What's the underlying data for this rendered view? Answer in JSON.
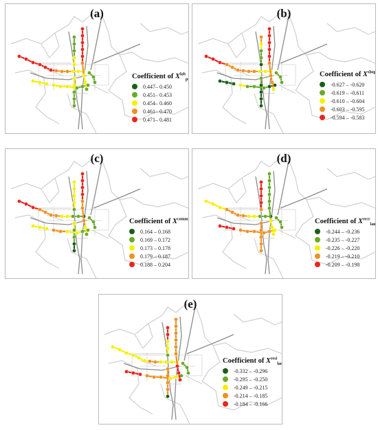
{
  "legend_title_prefix": "Coefficient of",
  "variable_letter": "X",
  "class_colors": [
    "#1a5e1a",
    "#6aaa2a",
    "#f5f000",
    "#ee9220",
    "#e8261f"
  ],
  "colors": {
    "boundary": "#cfcfcf",
    "road_grid": "#dedede",
    "base_line": "#8a8a8a",
    "connector": "#c3c3c3",
    "panel_border": "#b9b9b9"
  },
  "panels": [
    {
      "id": "a",
      "label": "(a)",
      "var_sup": "lab",
      "var_sub": "pst",
      "legend": [
        "0.447– 0.450",
        "0.451– 0.453",
        "0.454– 0.460",
        "0.461– 0.470",
        "0.471– 0.481"
      ]
    },
    {
      "id": "b",
      "label": "(b)",
      "var_sup": "shop",
      "var_sub": "poi",
      "legend": [
        "-0.627 – -0.620",
        "-0.619 – -0.611",
        "-0.610 – -0.604",
        "-0.603 – -0.595",
        "-0.594 – -0.583"
      ]
    },
    {
      "id": "c",
      "label": "(c)",
      "var_sup": "comm",
      "var_sub": "land",
      "legend": [
        "0.164 – 0.168",
        "0.169 – 0.172",
        "0.173 – 0.178",
        "0.179 – 0.187",
        "0.188 – 0.204"
      ]
    },
    {
      "id": "d",
      "label": "(d)",
      "var_sup": "recr",
      "var_sub": "land",
      "legend": [
        "-0.244 – -0.236",
        "-0.235 – -0.227",
        "-0.226 – -0.220",
        "-0.219 – -0.210",
        "-0.209 – -0.198"
      ]
    },
    {
      "id": "e",
      "label": "(e)",
      "var_sup": "resi",
      "var_sub": "land",
      "legend": [
        "-0.332 – -0.296",
        "-0.295 – -0.250",
        "-0.249 – -0.215",
        "-0.214 – -0.185",
        "-0.184 – -0.166"
      ]
    }
  ],
  "station_classes": {
    "a": {
      "line1_w": [
        4,
        4,
        4,
        4,
        4,
        4,
        3,
        3,
        3,
        2,
        2,
        2
      ],
      "line1_e": [
        1,
        1,
        1
      ],
      "line2_n": [
        1,
        1,
        1,
        2,
        2
      ],
      "line2_s": [
        2,
        2,
        1,
        1,
        1
      ],
      "line3_nw": [
        2,
        2,
        2
      ],
      "line3_se": [
        2,
        2,
        2,
        1,
        1,
        1
      ],
      "line4": [
        4,
        4,
        4,
        4,
        4,
        3,
        2,
        2,
        1
      ]
    },
    "b": {
      "line1_w": [
        4,
        4,
        4,
        3,
        3,
        3,
        3,
        3,
        3,
        2,
        2,
        2
      ],
      "line1_e": [
        1,
        1,
        1
      ],
      "line2_n": [
        3,
        2,
        1,
        1,
        0
      ],
      "line2_s": [
        1,
        0,
        0,
        0,
        0
      ],
      "line3_nw": [
        0,
        0,
        0
      ],
      "line3_se": [
        2,
        1,
        1,
        1,
        0,
        0
      ],
      "line4": [
        4,
        4,
        4,
        4,
        4,
        3,
        3,
        3,
        2
      ]
    },
    "c": {
      "line1_w": [
        4,
        4,
        4,
        3,
        3,
        3,
        3,
        2,
        2,
        1,
        1,
        0
      ],
      "line1_e": [
        1,
        1,
        1
      ],
      "line2_n": [
        2,
        2,
        2,
        2,
        1
      ],
      "line2_s": [
        2,
        1,
        1,
        0,
        0
      ],
      "line3_nw": [
        2,
        2,
        2
      ],
      "line3_se": [
        3,
        3,
        2,
        2,
        1,
        1
      ],
      "line4": [
        4,
        4,
        4,
        4,
        3,
        3,
        3,
        2,
        1
      ]
    },
    "d": {
      "line1_w": [
        2,
        2,
        2,
        3,
        3,
        3,
        3,
        2,
        2,
        1,
        1,
        0
      ],
      "line1_e": [
        1,
        1,
        1
      ],
      "line2_n": [
        4,
        4,
        4,
        4,
        3
      ],
      "line2_s": [
        3,
        3,
        3,
        3,
        3
      ],
      "line3_nw": [
        4,
        4,
        4
      ],
      "line3_se": [
        3,
        3,
        3,
        3,
        3,
        2
      ],
      "line4": [
        1,
        1,
        1,
        1,
        1,
        1,
        2,
        2,
        2
      ]
    },
    "e": {
      "line1_w": [
        2,
        2,
        2,
        2,
        2,
        2,
        3,
        3,
        2,
        2,
        2,
        2
      ],
      "line1_e": [
        1,
        1,
        1
      ],
      "line2_n": [
        4,
        4,
        2,
        2,
        1
      ],
      "line2_s": [
        3,
        3,
        3,
        3,
        0
      ],
      "line3_nw": [
        4,
        4,
        4
      ],
      "line3_se": [
        3,
        3,
        3,
        2,
        2,
        1
      ],
      "line4": [
        3,
        3,
        3,
        3,
        3,
        3,
        4,
        4,
        4
      ]
    }
  }
}
